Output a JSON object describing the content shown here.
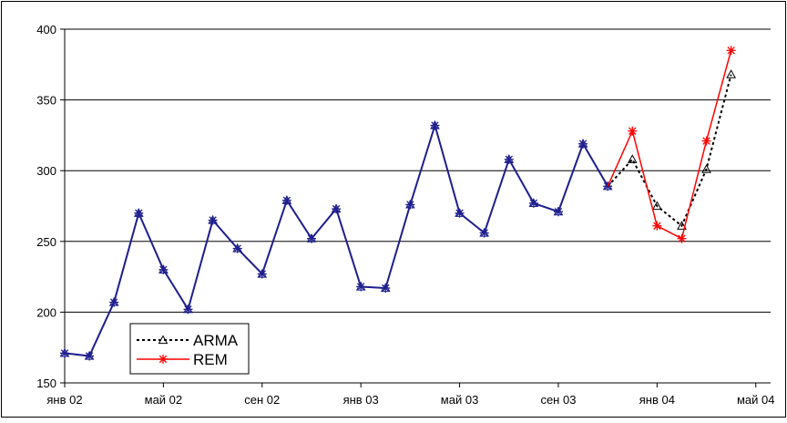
{
  "chart_data": {
    "type": "line",
    "title": "",
    "xlabel": "",
    "ylabel": "",
    "ylim": [
      150,
      400
    ],
    "yticks": [
      150,
      200,
      250,
      300,
      350,
      400
    ],
    "grid": "horizontal",
    "legend_position": "bottom-left",
    "x_tick_labels": [
      "янв 02",
      "май 02",
      "сен 02",
      "янв 03",
      "май 03",
      "сен 03",
      "янв 04",
      "май 04"
    ],
    "x_tick_months": [
      0,
      4,
      8,
      12,
      16,
      20,
      24,
      28
    ],
    "colors": {
      "ARMA": "#000000",
      "REM": "#ff0000",
      "history": "#1f1f8f"
    },
    "history": {
      "months": [
        0,
        1,
        2,
        3,
        4,
        5,
        6,
        7,
        8,
        9,
        10,
        11,
        12,
        13,
        14,
        15,
        16,
        17,
        18,
        19,
        20,
        21,
        22
      ],
      "values": [
        171,
        169,
        207,
        270,
        230,
        202,
        265,
        245,
        227,
        279,
        252,
        273,
        218,
        217,
        276,
        332,
        270,
        256,
        308,
        277,
        271,
        319,
        289
      ]
    },
    "series": [
      {
        "name": "ARMA",
        "months": [
          22,
          23,
          24,
          25,
          26,
          27
        ],
        "values": [
          289,
          308,
          275,
          261,
          301,
          368
        ]
      },
      {
        "name": "REM",
        "months": [
          22,
          23,
          24,
          25,
          26,
          27
        ],
        "values": [
          289,
          328,
          261,
          252,
          321,
          385
        ]
      }
    ]
  }
}
